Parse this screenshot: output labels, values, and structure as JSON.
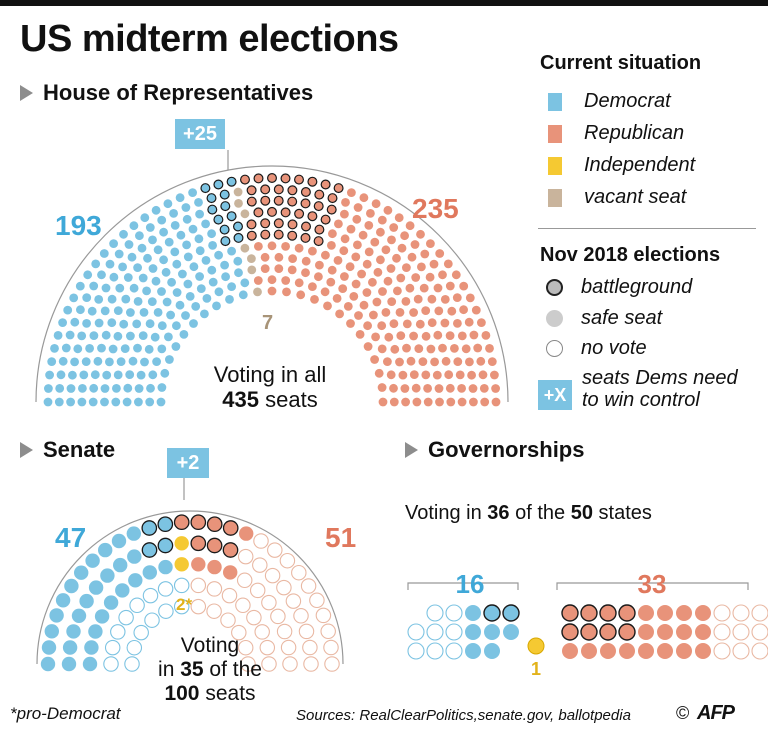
{
  "title": "US midterm elections",
  "colors": {
    "democrat": "#7cc3e2",
    "republican": "#e8937a",
    "independent": "#f5c932",
    "vacant": "#c9b49c",
    "dem_light": "#b9e0ef",
    "rep_light": "#f3cdbd",
    "arc": "#999999"
  },
  "legend": {
    "heading": "Current situation",
    "items": [
      {
        "label": "Democrat",
        "color": "#7cc3e2"
      },
      {
        "label": "Republican",
        "color": "#e8937a"
      },
      {
        "label": "Independent",
        "color": "#f5c932"
      },
      {
        "label": "vacant seat",
        "color": "#c9b49c"
      }
    ],
    "elections_heading": "Nov 2018 elections",
    "elections_items": [
      {
        "label": "battleground",
        "icon": "battleground-circle-icon"
      },
      {
        "label": "safe seat",
        "icon": "safe-seat-circle-icon"
      },
      {
        "label": "no vote",
        "icon": "no-vote-circle-icon"
      }
    ],
    "badge_label": "+X",
    "badge_text_1": "seats Dems need",
    "badge_text_2": "to win control"
  },
  "house": {
    "heading": "House of Representatives",
    "badge": "+25",
    "dem_count": "193",
    "rep_count": "235",
    "vacant_count": "7",
    "voting_line1": "Voting in all",
    "voting_number": "435",
    "voting_rest": " seats"
  },
  "senate": {
    "heading": "Senate",
    "badge": "+2",
    "dem_count": "47",
    "rep_count": "51",
    "ind_count": "2*",
    "voting_line1": "Voting",
    "voting_in": "in ",
    "voting_number": "35",
    "voting_mid": " of the",
    "voting_total": "100",
    "voting_rest": " seats"
  },
  "governorships": {
    "heading": "Governorships",
    "voting_prefix": "Voting in ",
    "voting_number": "36",
    "voting_mid": " of the ",
    "voting_total": "50",
    "voting_rest": " states",
    "dem_count": "16",
    "rep_count": "33",
    "ind_count": "1"
  },
  "chart_data": [
    {
      "type": "parliament",
      "name": "House of Representatives",
      "total_seats": 435,
      "series": [
        {
          "name": "Democrat",
          "values": [
            193
          ]
        },
        {
          "name": "Republican",
          "values": [
            235
          ]
        },
        {
          "name": "vacant seat",
          "values": [
            7
          ]
        }
      ],
      "seats_dems_need": 25,
      "seats_voting": 435
    },
    {
      "type": "parliament",
      "name": "Senate",
      "total_seats": 100,
      "series": [
        {
          "name": "Democrat",
          "values": [
            47
          ]
        },
        {
          "name": "Republican",
          "values": [
            51
          ]
        },
        {
          "name": "Independent",
          "values": [
            2
          ]
        }
      ],
      "seats_dems_need": 2,
      "seats_voting": 35
    },
    {
      "type": "unit",
      "name": "Governorships",
      "total": 50,
      "series": [
        {
          "name": "Democrat",
          "values": [
            16
          ]
        },
        {
          "name": "Republican",
          "values": [
            33
          ]
        },
        {
          "name": "Independent",
          "values": [
            1
          ]
        }
      ],
      "states_voting": 36
    }
  ],
  "footnote": "*pro-Democrat",
  "sources": "Sources: RealClearPolitics,senate.gov, ballotpedia",
  "copyright": "©",
  "logo": "AFP"
}
